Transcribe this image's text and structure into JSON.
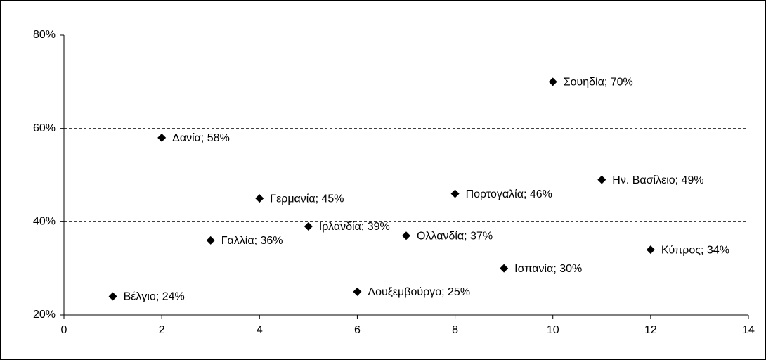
{
  "chart_data": {
    "type": "scatter",
    "x": [
      1,
      2,
      3,
      4,
      5,
      6,
      7,
      8,
      9,
      10,
      11,
      12
    ],
    "values": [
      24,
      58,
      36,
      45,
      39,
      25,
      37,
      46,
      30,
      70,
      49,
      34
    ],
    "value_labels": [
      "Βέλγιο; 24%",
      "Δανία; 58%",
      "Γαλλία; 36%",
      "Γερμανία; 45%",
      "Ιρλανδία; 39%",
      "Λουξεμβούργο; 25%",
      "Ολλανδία; 37%",
      "Πορτογαλία; 46%",
      "Ισπανία; 30%",
      "Σουηδία; 70%",
      "Ην. Βασίλειο; 49%",
      "Κύπρος; 34%"
    ],
    "color": "#000000",
    "xlim": [
      0,
      14
    ],
    "xticks": [
      0,
      2,
      4,
      6,
      8,
      10,
      12,
      14
    ],
    "ylim": [
      20,
      80
    ],
    "yticks": [
      {
        "value": 20,
        "label": "20%"
      },
      {
        "value": 40,
        "label": "40%"
      },
      {
        "value": 60,
        "label": "60%"
      },
      {
        "value": 80,
        "label": "80%"
      }
    ],
    "grid": true
  }
}
